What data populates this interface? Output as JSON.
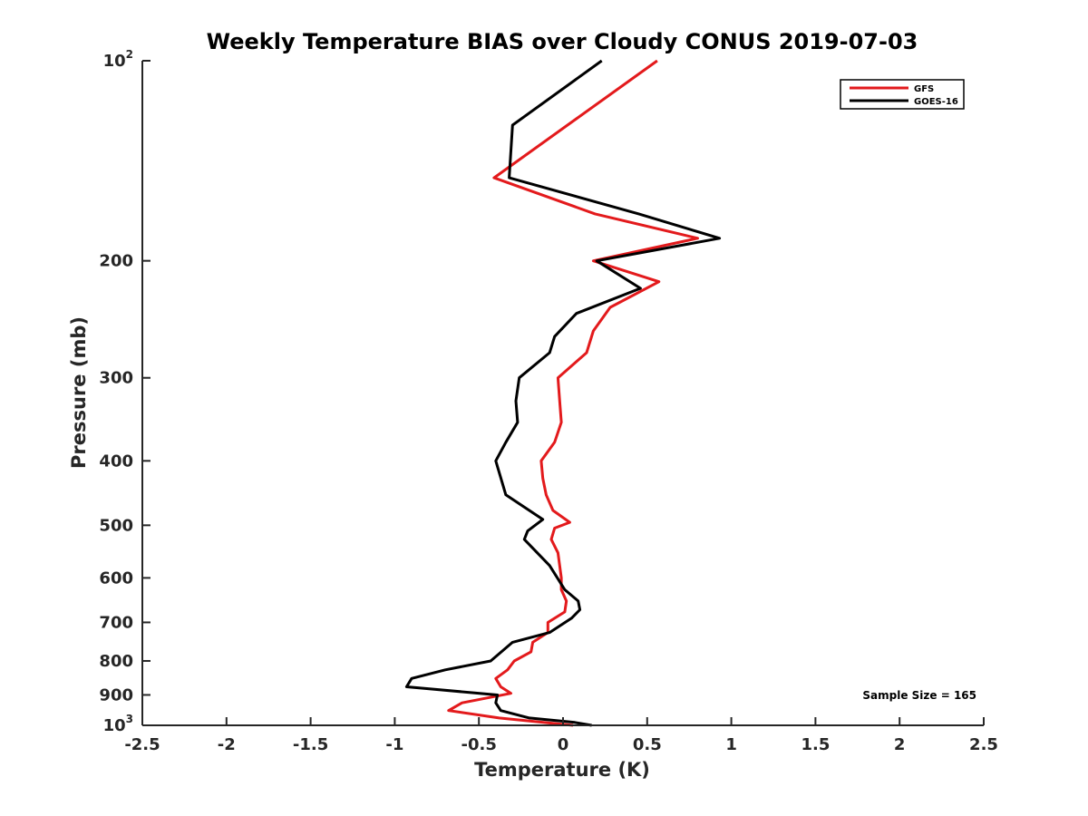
{
  "chart_data": {
    "type": "line",
    "title": "Weekly Temperature BIAS over Cloudy CONUS 2019-07-03",
    "xlabel": "Temperature (K)",
    "ylabel": "Pressure (mb)",
    "xlim": [
      -2.5,
      2.5
    ],
    "ylim": [
      100,
      1000
    ],
    "y_scale": "log",
    "y_reversed": true,
    "x_ticks": [
      -2.5,
      -2,
      -1.5,
      -1,
      -0.5,
      0,
      0.5,
      1,
      1.5,
      2,
      2.5
    ],
    "x_tick_labels": [
      "-2.5",
      "-2",
      "-1.5",
      "-1",
      "-0.5",
      "0",
      "0.5",
      "1",
      "1.5",
      "2",
      "2.5"
    ],
    "y_ticks": [
      {
        "value": 100,
        "base": "10",
        "exp": "2"
      },
      {
        "value": 200,
        "label": "200"
      },
      {
        "value": 300,
        "label": "300"
      },
      {
        "value": 400,
        "label": "400"
      },
      {
        "value": 500,
        "label": "500"
      },
      {
        "value": 600,
        "label": "600"
      },
      {
        "value": 700,
        "label": "700"
      },
      {
        "value": 800,
        "label": "800"
      },
      {
        "value": 900,
        "label": "900"
      },
      {
        "value": 1000,
        "base": "10",
        "exp": "3"
      }
    ],
    "grid": false,
    "legend_position": "top-right",
    "annotation": "Sample Size = 165",
    "series": [
      {
        "name": "GFS",
        "color": "#e31a1c",
        "points": [
          {
            "t": 0.56,
            "p": 100
          },
          {
            "t": -0.41,
            "p": 150
          },
          {
            "t": 0.19,
            "p": 170
          },
          {
            "t": 0.8,
            "p": 185
          },
          {
            "t": 0.18,
            "p": 200
          },
          {
            "t": 0.57,
            "p": 215
          },
          {
            "t": 0.28,
            "p": 235
          },
          {
            "t": 0.18,
            "p": 255
          },
          {
            "t": 0.14,
            "p": 275
          },
          {
            "t": -0.03,
            "p": 300
          },
          {
            "t": -0.02,
            "p": 325
          },
          {
            "t": -0.01,
            "p": 350
          },
          {
            "t": -0.05,
            "p": 375
          },
          {
            "t": -0.13,
            "p": 400
          },
          {
            "t": -0.12,
            "p": 425
          },
          {
            "t": -0.1,
            "p": 450
          },
          {
            "t": -0.06,
            "p": 475
          },
          {
            "t": 0.04,
            "p": 495
          },
          {
            "t": -0.05,
            "p": 505
          },
          {
            "t": -0.07,
            "p": 525
          },
          {
            "t": -0.03,
            "p": 550
          },
          {
            "t": -0.02,
            "p": 575
          },
          {
            "t": -0.01,
            "p": 600
          },
          {
            "t": -0.01,
            "p": 625
          },
          {
            "t": 0.02,
            "p": 650
          },
          {
            "t": 0.01,
            "p": 675
          },
          {
            "t": -0.09,
            "p": 700
          },
          {
            "t": -0.09,
            "p": 725
          },
          {
            "t": -0.18,
            "p": 750
          },
          {
            "t": -0.19,
            "p": 775
          },
          {
            "t": -0.29,
            "p": 800
          },
          {
            "t": -0.33,
            "p": 825
          },
          {
            "t": -0.4,
            "p": 850
          },
          {
            "t": -0.37,
            "p": 875
          },
          {
            "t": -0.31,
            "p": 895
          },
          {
            "t": -0.6,
            "p": 925
          },
          {
            "t": -0.68,
            "p": 950
          },
          {
            "t": -0.38,
            "p": 975
          },
          {
            "t": 0.06,
            "p": 1000
          }
        ]
      },
      {
        "name": "GOES-16",
        "color": "#000000",
        "points": [
          {
            "t": 0.23,
            "p": 100
          },
          {
            "t": -0.3,
            "p": 125
          },
          {
            "t": -0.32,
            "p": 150
          },
          {
            "t": 0.45,
            "p": 170
          },
          {
            "t": 0.93,
            "p": 185
          },
          {
            "t": 0.2,
            "p": 200
          },
          {
            "t": 0.46,
            "p": 220
          },
          {
            "t": 0.08,
            "p": 240
          },
          {
            "t": -0.05,
            "p": 260
          },
          {
            "t": -0.08,
            "p": 275
          },
          {
            "t": -0.26,
            "p": 300
          },
          {
            "t": -0.28,
            "p": 325
          },
          {
            "t": -0.27,
            "p": 350
          },
          {
            "t": -0.34,
            "p": 375
          },
          {
            "t": -0.4,
            "p": 400
          },
          {
            "t": -0.34,
            "p": 450
          },
          {
            "t": -0.12,
            "p": 490
          },
          {
            "t": -0.21,
            "p": 510
          },
          {
            "t": -0.23,
            "p": 525
          },
          {
            "t": -0.08,
            "p": 575
          },
          {
            "t": 0.01,
            "p": 625
          },
          {
            "t": 0.09,
            "p": 650
          },
          {
            "t": 0.1,
            "p": 670
          },
          {
            "t": 0.05,
            "p": 690
          },
          {
            "t": -0.08,
            "p": 725
          },
          {
            "t": -0.3,
            "p": 750
          },
          {
            "t": -0.43,
            "p": 800
          },
          {
            "t": -0.7,
            "p": 825
          },
          {
            "t": -0.9,
            "p": 850
          },
          {
            "t": -0.93,
            "p": 875
          },
          {
            "t": -0.39,
            "p": 900
          },
          {
            "t": -0.4,
            "p": 925
          },
          {
            "t": -0.37,
            "p": 950
          },
          {
            "t": -0.2,
            "p": 975
          },
          {
            "t": 0.07,
            "p": 990
          },
          {
            "t": 0.17,
            "p": 1000
          }
        ]
      }
    ]
  }
}
